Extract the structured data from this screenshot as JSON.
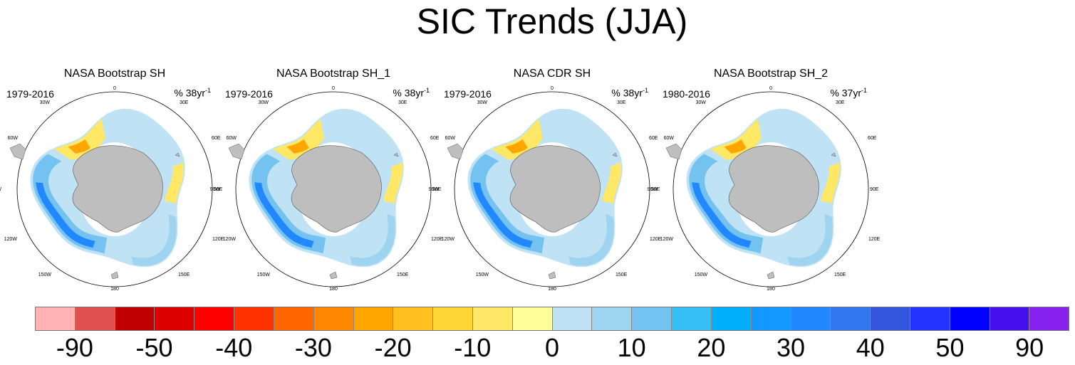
{
  "title": "SIC Trends (JJA)",
  "panels": [
    {
      "title": "NASA Bootstrap SH",
      "period": "1979-2016",
      "units_prefix": "% 38yr",
      "units_exp": "-1"
    },
    {
      "title": "NASA Bootstrap SH_1",
      "period": "1979-2016",
      "units_prefix": "% 38yr",
      "units_exp": "-1"
    },
    {
      "title": "NASA CDR SH",
      "period": "1979-2016",
      "units_prefix": "% 38yr",
      "units_exp": "-1"
    },
    {
      "title": "NASA Bootstrap SH_2",
      "period": "1980-2016",
      "units_prefix": "% 37yr",
      "units_exp": "-1"
    }
  ],
  "longitude_labels": {
    "top": "0",
    "bottom": "180",
    "left": [
      "30W",
      "60W",
      "90W",
      "120W",
      "150W"
    ],
    "right": [
      "30E",
      "60E",
      "90E",
      "120E",
      "150E"
    ]
  },
  "colorbar": {
    "colors": [
      "#ffb3b3",
      "#e05050",
      "#c00000",
      "#dd0000",
      "#ff0000",
      "#ff3300",
      "#ff6600",
      "#ff8800",
      "#ffa500",
      "#ffc020",
      "#ffd633",
      "#ffe866",
      "#ffff99",
      "#bfe3f5",
      "#9fd4f0",
      "#74c2f0",
      "#33bff5",
      "#00b0ff",
      "#1199ff",
      "#2288ff",
      "#3377ee",
      "#3355dd",
      "#2233ff",
      "#0000ff",
      "#4411ee",
      "#8822ee"
    ],
    "labels": [
      "-90",
      "-50",
      "-40",
      "-30",
      "-20",
      "-10",
      "0",
      "10",
      "20",
      "30",
      "40",
      "50",
      "90"
    ]
  }
}
